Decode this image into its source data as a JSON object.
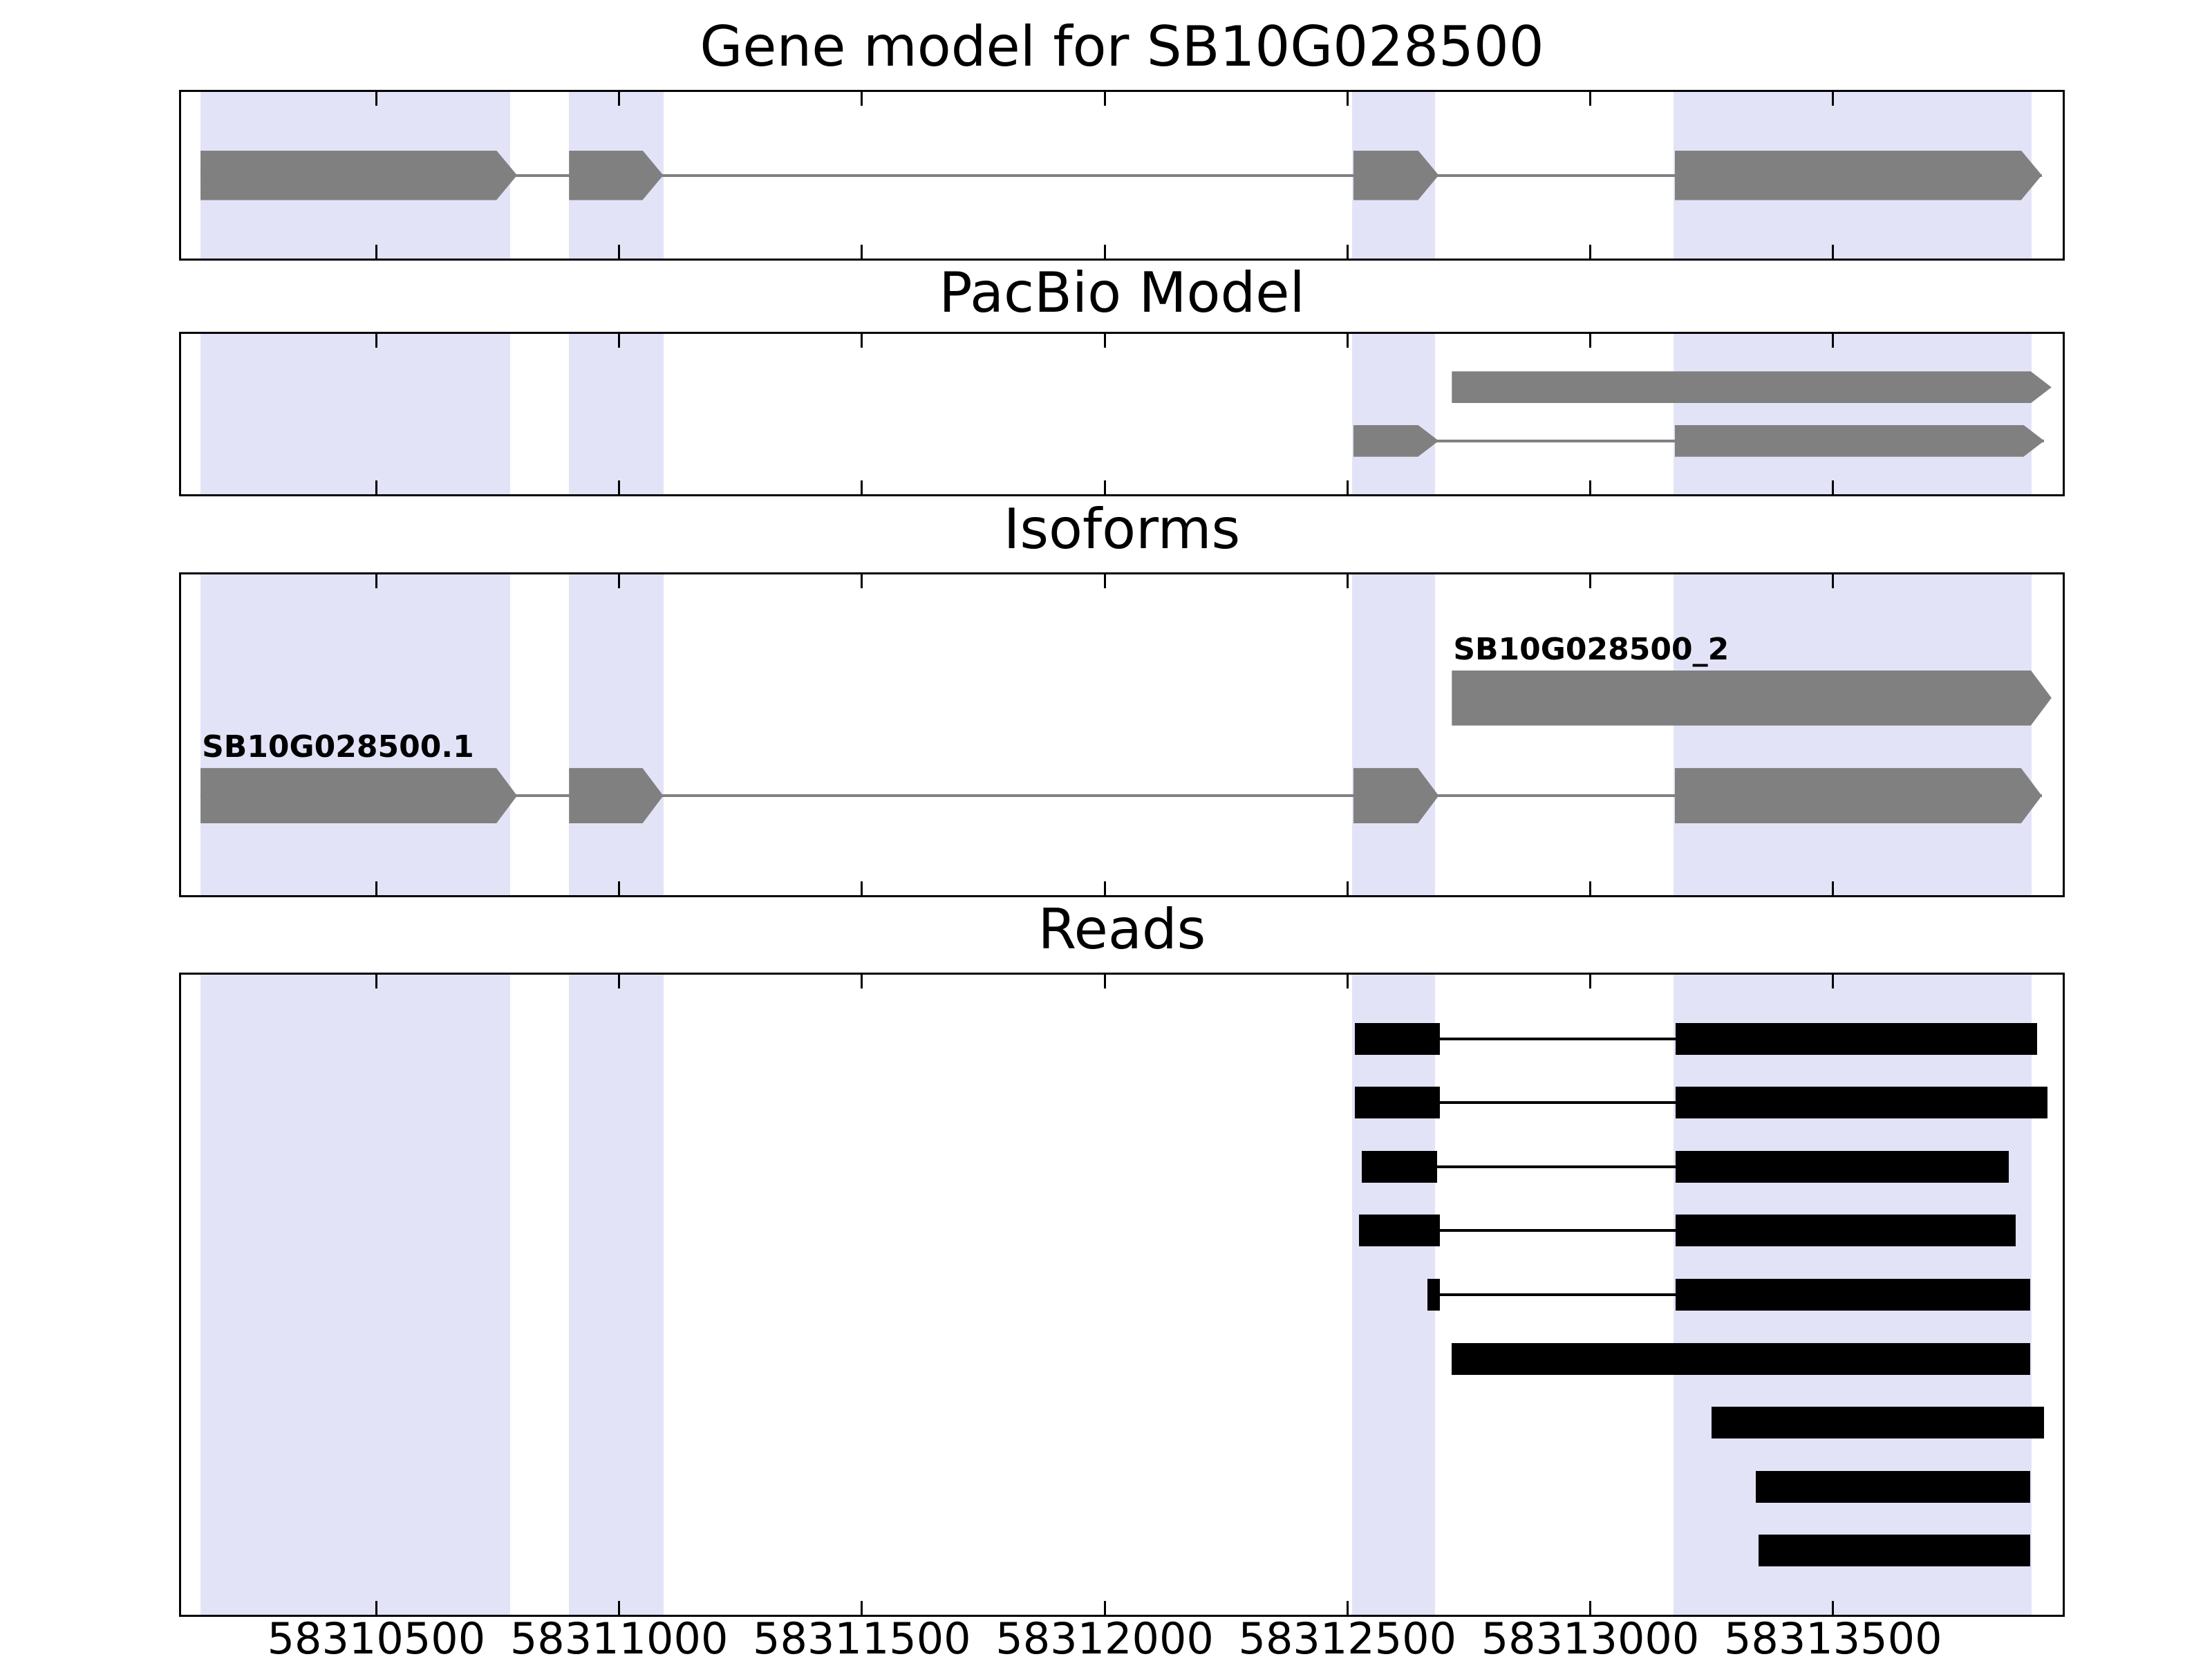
{
  "chart_data": {
    "type": "gene-model-tracks",
    "title": "Gene model for SB10G028500",
    "xlabel": "",
    "ylabel": "",
    "grid": false,
    "xlim": [
      58310098,
      58313973
    ],
    "x_ticks": [
      58310500,
      58311000,
      58311500,
      58312000,
      58312500,
      58313000,
      58313500
    ],
    "x_tick_labels": [
      "58310500",
      "58311000",
      "58311500",
      "58312000",
      "58312500",
      "58313000",
      "58313500"
    ],
    "highlight_regions": [
      [
        58310138,
        58310776
      ],
      [
        58310897,
        58311091
      ],
      [
        58312509,
        58312680
      ],
      [
        58313171,
        58313909
      ]
    ],
    "colors": {
      "exon": "#808080",
      "intron_line": "#808080",
      "read": "#000000",
      "read_line": "#000000",
      "highlight": "#e3e3f8",
      "panel_border": "#000000",
      "background": "#ffffff",
      "text": "#000000"
    },
    "panels": [
      {
        "id": "gene-model",
        "title": "Gene model for SB10G028500",
        "kind": "transcripts",
        "rows": [
          {
            "label": "",
            "arrow": true,
            "exons": [
              [
                58310138,
                58310790
              ],
              [
                58310897,
                58311091
              ],
              [
                58312512,
                58312688
              ],
              [
                58313174,
                58313930
              ]
            ]
          }
        ]
      },
      {
        "id": "pacbio-model",
        "title": "PacBio Model",
        "kind": "transcripts",
        "rows": [
          {
            "label": "",
            "arrow": true,
            "exons": [
              [
                58312715,
                58313950
              ]
            ]
          },
          {
            "label": "",
            "arrow": true,
            "exons": [
              [
                58312512,
                58312688
              ],
              [
                58313174,
                58313935
              ]
            ]
          }
        ]
      },
      {
        "id": "isoforms",
        "title": "Isoforms",
        "kind": "transcripts",
        "rows": [
          {
            "label": "SB10G028500_2",
            "arrow": true,
            "exons": [
              [
                58312715,
                58313950
              ]
            ]
          },
          {
            "label": "SB10G028500.1",
            "arrow": true,
            "exons": [
              [
                58310138,
                58310790
              ],
              [
                58310897,
                58311091
              ],
              [
                58312512,
                58312688
              ],
              [
                58313174,
                58313930
              ]
            ]
          }
        ]
      },
      {
        "id": "reads",
        "title": "Reads",
        "kind": "reads",
        "rows": [
          {
            "blocks": [
              [
                58312515,
                58312691
              ],
              [
                58313176,
                58313920
              ]
            ]
          },
          {
            "blocks": [
              [
                58312515,
                58312691
              ],
              [
                58313176,
                58313941
              ]
            ]
          },
          {
            "blocks": [
              [
                58312529,
                58312685
              ],
              [
                58313176,
                58313862
              ]
            ]
          },
          {
            "blocks": [
              [
                58312524,
                58312691
              ],
              [
                58313176,
                58313876
              ]
            ]
          },
          {
            "blocks": [
              [
                58312665,
                58312691
              ],
              [
                58313176,
                58313906
              ]
            ]
          },
          {
            "blocks": [
              [
                58312715,
                58313906
              ]
            ]
          },
          {
            "blocks": [
              [
                58313250,
                58313935
              ]
            ]
          },
          {
            "blocks": [
              [
                58313341,
                58313906
              ]
            ]
          },
          {
            "blocks": [
              [
                58313347,
                58313906
              ]
            ]
          }
        ]
      }
    ]
  }
}
